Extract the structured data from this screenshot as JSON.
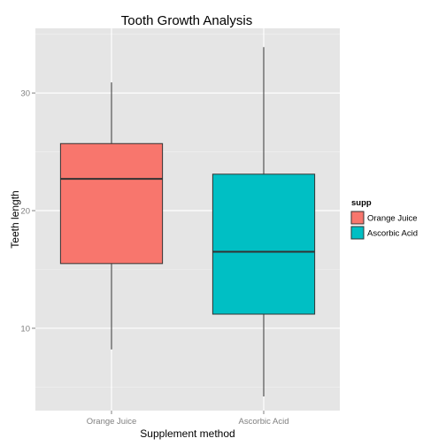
{
  "chart_data": {
    "type": "boxplot",
    "title": "Tooth Growth Analysis",
    "xlabel": "Supplement method",
    "ylabel": "Teeth length",
    "ylim": [
      3,
      35.5
    ],
    "y_ticks": [
      10,
      20,
      30
    ],
    "grid": true,
    "legend": {
      "title": "supp",
      "position": "right",
      "entries": [
        "Orange Juice",
        "Ascorbic Acid"
      ]
    },
    "categories": [
      "Orange Juice",
      "Ascorbic Acid"
    ],
    "boxes": [
      {
        "name": "Orange Juice",
        "min": 8.2,
        "q1": 15.5,
        "median": 22.7,
        "q3": 25.7,
        "max": 30.9,
        "color": "#F8766D"
      },
      {
        "name": "Ascorbic Acid",
        "min": 4.2,
        "q1": 11.2,
        "median": 16.5,
        "q3": 23.1,
        "max": 33.9,
        "color": "#00BFC4"
      }
    ]
  },
  "colors": {
    "panel_background": "#E5E5E5",
    "grid_major": "#FFFFFF",
    "grid_minor": "#F2F2F2",
    "axis_text": "#7F7F7F",
    "box_outline": "#333333"
  }
}
